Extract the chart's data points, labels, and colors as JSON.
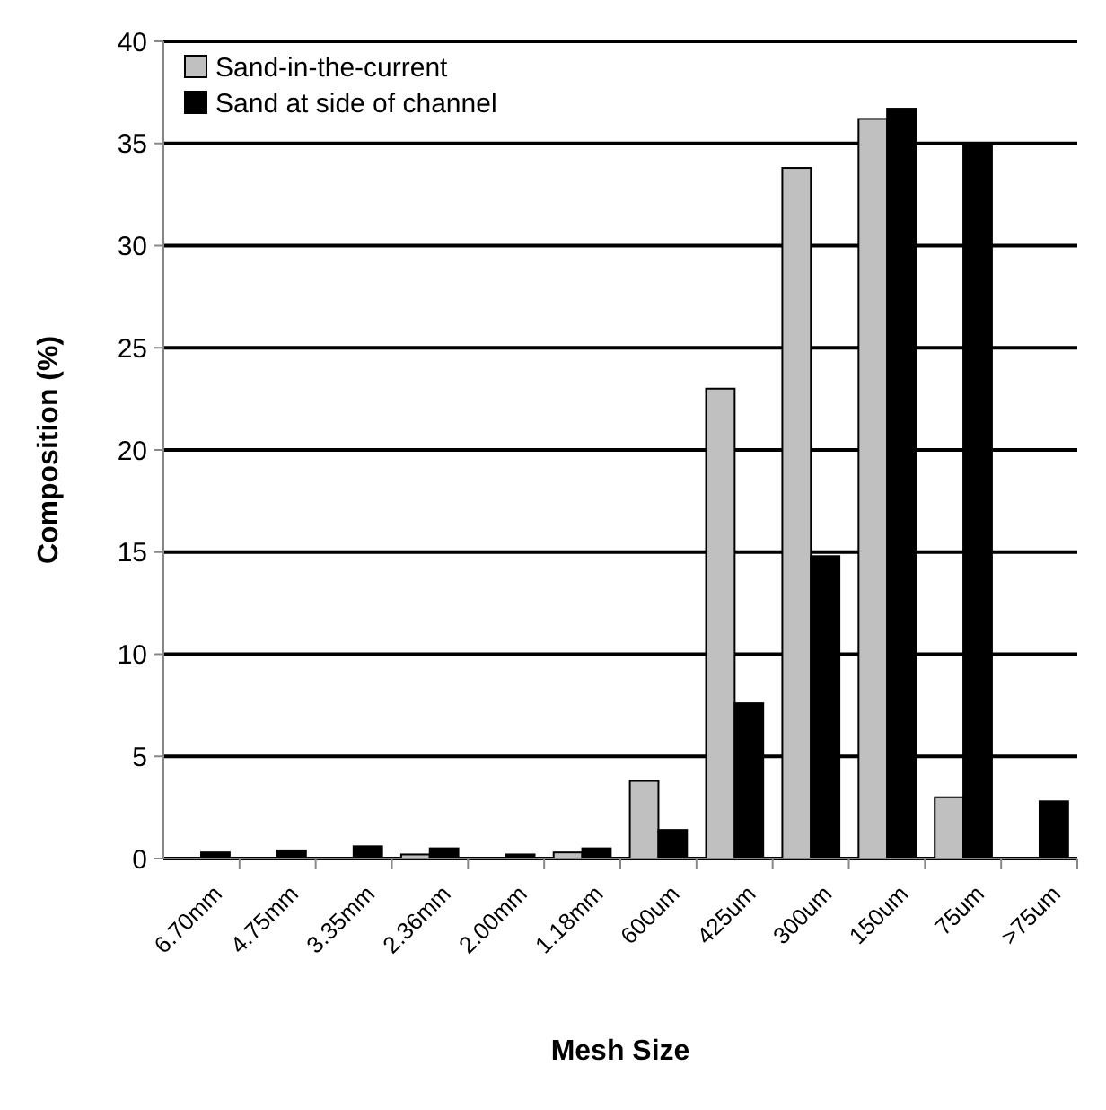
{
  "chart_data": {
    "type": "bar",
    "xlabel": "Mesh Size",
    "ylabel": "Composition (%)",
    "categories": [
      "6.70mm",
      "4.75mm",
      "3.35mm",
      "2.36mm",
      "2.00mm",
      "1.18mm",
      "600um",
      "425um",
      "300um",
      "150um",
      "75um",
      ">75um"
    ],
    "series": [
      {
        "name": "Sand-in-the-current",
        "color": "#c0c0c0",
        "values": [
          0,
          0,
          0,
          0.2,
          0,
          0.3,
          3.8,
          23,
          33.8,
          36.2,
          3.0,
          null
        ]
      },
      {
        "name": "Sand at side of channel",
        "color": "#000000",
        "values": [
          0.3,
          0.4,
          0.6,
          0.5,
          0.2,
          0.5,
          1.4,
          7.6,
          14.8,
          36.7,
          35,
          2.8
        ]
      }
    ],
    "ylim": [
      0,
      40
    ],
    "yticks": [
      0,
      5,
      10,
      15,
      20,
      25,
      30,
      35,
      40
    ],
    "grid": "y",
    "legend": "top left"
  }
}
